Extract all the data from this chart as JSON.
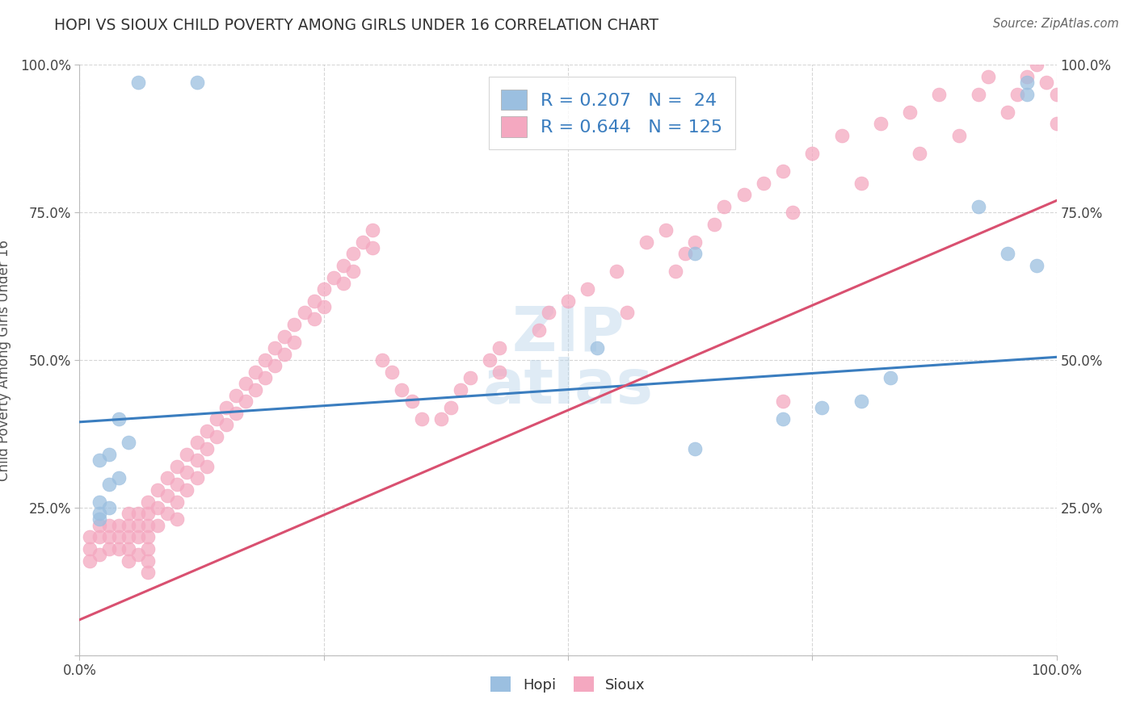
{
  "title": "HOPI VS SIOUX CHILD POVERTY AMONG GIRLS UNDER 16 CORRELATION CHART",
  "source": "Source: ZipAtlas.com",
  "ylabel": "Child Poverty Among Girls Under 16",
  "hopi_color": "#9bbfe0",
  "sioux_color": "#f4a8c0",
  "hopi_line_color": "#3a7dbf",
  "sioux_line_color": "#d95070",
  "hopi_R": 0.207,
  "hopi_N": 24,
  "sioux_R": 0.644,
  "sioux_N": 125,
  "background_color": "#ffffff",
  "grid_color": "#cccccc",
  "hopi_scatter_x": [
    0.06,
    0.12,
    0.97,
    0.97,
    0.92,
    0.95,
    0.63,
    0.98,
    0.53,
    0.83,
    0.8,
    0.76,
    0.72,
    0.63,
    0.04,
    0.05,
    0.03,
    0.02,
    0.04,
    0.03,
    0.02,
    0.03,
    0.02,
    0.02
  ],
  "hopi_scatter_y": [
    0.97,
    0.97,
    0.97,
    0.95,
    0.76,
    0.68,
    0.68,
    0.66,
    0.52,
    0.47,
    0.43,
    0.42,
    0.4,
    0.35,
    0.4,
    0.36,
    0.34,
    0.33,
    0.3,
    0.29,
    0.26,
    0.25,
    0.24,
    0.23
  ],
  "sioux_scatter_x": [
    0.01,
    0.01,
    0.01,
    0.02,
    0.02,
    0.02,
    0.03,
    0.03,
    0.03,
    0.04,
    0.04,
    0.04,
    0.05,
    0.05,
    0.05,
    0.05,
    0.05,
    0.06,
    0.06,
    0.06,
    0.06,
    0.07,
    0.07,
    0.07,
    0.07,
    0.07,
    0.07,
    0.07,
    0.08,
    0.08,
    0.08,
    0.09,
    0.09,
    0.09,
    0.1,
    0.1,
    0.1,
    0.1,
    0.11,
    0.11,
    0.11,
    0.12,
    0.12,
    0.12,
    0.13,
    0.13,
    0.13,
    0.14,
    0.14,
    0.15,
    0.15,
    0.16,
    0.16,
    0.17,
    0.17,
    0.18,
    0.18,
    0.19,
    0.19,
    0.2,
    0.2,
    0.21,
    0.21,
    0.22,
    0.22,
    0.23,
    0.24,
    0.24,
    0.25,
    0.25,
    0.26,
    0.27,
    0.27,
    0.28,
    0.28,
    0.29,
    0.3,
    0.3,
    0.31,
    0.32,
    0.33,
    0.34,
    0.35,
    0.37,
    0.38,
    0.39,
    0.4,
    0.42,
    0.43,
    0.43,
    0.47,
    0.48,
    0.5,
    0.52,
    0.55,
    0.56,
    0.58,
    0.6,
    0.61,
    0.62,
    0.63,
    0.65,
    0.66,
    0.68,
    0.7,
    0.72,
    0.73,
    0.75,
    0.78,
    0.8,
    0.82,
    0.85,
    0.86,
    0.88,
    0.9,
    0.92,
    0.93,
    0.95,
    0.96,
    0.97,
    0.98,
    0.99,
    1.0,
    1.0,
    0.72
  ],
  "sioux_scatter_y": [
    0.2,
    0.18,
    0.16,
    0.22,
    0.2,
    0.17,
    0.22,
    0.2,
    0.18,
    0.22,
    0.2,
    0.18,
    0.24,
    0.22,
    0.2,
    0.18,
    0.16,
    0.24,
    0.22,
    0.2,
    0.17,
    0.26,
    0.24,
    0.22,
    0.2,
    0.18,
    0.16,
    0.14,
    0.28,
    0.25,
    0.22,
    0.3,
    0.27,
    0.24,
    0.32,
    0.29,
    0.26,
    0.23,
    0.34,
    0.31,
    0.28,
    0.36,
    0.33,
    0.3,
    0.38,
    0.35,
    0.32,
    0.4,
    0.37,
    0.42,
    0.39,
    0.44,
    0.41,
    0.46,
    0.43,
    0.48,
    0.45,
    0.5,
    0.47,
    0.52,
    0.49,
    0.54,
    0.51,
    0.56,
    0.53,
    0.58,
    0.6,
    0.57,
    0.62,
    0.59,
    0.64,
    0.66,
    0.63,
    0.68,
    0.65,
    0.7,
    0.72,
    0.69,
    0.5,
    0.48,
    0.45,
    0.43,
    0.4,
    0.4,
    0.42,
    0.45,
    0.47,
    0.5,
    0.52,
    0.48,
    0.55,
    0.58,
    0.6,
    0.62,
    0.65,
    0.58,
    0.7,
    0.72,
    0.65,
    0.68,
    0.7,
    0.73,
    0.76,
    0.78,
    0.8,
    0.82,
    0.75,
    0.85,
    0.88,
    0.8,
    0.9,
    0.92,
    0.85,
    0.95,
    0.88,
    0.95,
    0.98,
    0.92,
    0.95,
    0.98,
    1.0,
    0.97,
    0.95,
    0.9,
    0.43
  ]
}
